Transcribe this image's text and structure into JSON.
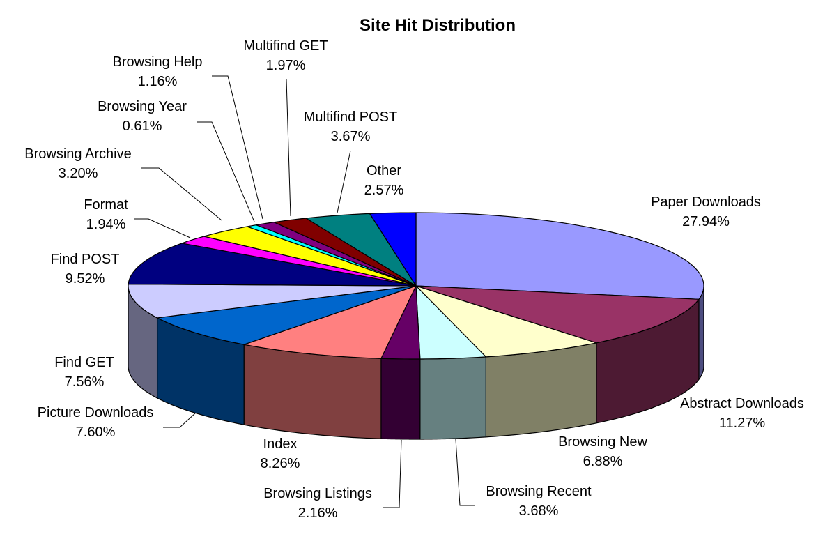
{
  "chart_data": {
    "type": "pie",
    "title": "Site Hit Distribution",
    "three_d": true,
    "slices": [
      {
        "label": "Paper Downloads",
        "value": 27.94,
        "pct_text": "27.94%",
        "color": "#9999FF"
      },
      {
        "label": "Abstract Downloads",
        "value": 11.27,
        "pct_text": "11.27%",
        "color": "#993366"
      },
      {
        "label": "Browsing New",
        "value": 6.88,
        "pct_text": "6.88%",
        "color": "#FFFFCC"
      },
      {
        "label": "Browsing Recent",
        "value": 3.68,
        "pct_text": "3.68%",
        "color": "#CCFFFF"
      },
      {
        "label": "Browsing Listings",
        "value": 2.16,
        "pct_text": "2.16%",
        "color": "#660066"
      },
      {
        "label": "Index",
        "value": 8.26,
        "pct_text": "8.26%",
        "color": "#FF8080"
      },
      {
        "label": "Picture Downloads",
        "value": 7.6,
        "pct_text": "7.60%",
        "color": "#0066CC"
      },
      {
        "label": "Find GET",
        "value": 7.56,
        "pct_text": "7.56%",
        "color": "#CCCCFF"
      },
      {
        "label": "Find POST",
        "value": 9.52,
        "pct_text": "9.52%",
        "color": "#000080"
      },
      {
        "label": "Format",
        "value": 1.94,
        "pct_text": "1.94%",
        "color": "#FF00FF"
      },
      {
        "label": "Browsing Archive",
        "value": 3.2,
        "pct_text": "3.20%",
        "color": "#FFFF00"
      },
      {
        "label": "Browsing Year",
        "value": 0.61,
        "pct_text": "0.61%",
        "color": "#00FFFF"
      },
      {
        "label": "Browsing Help",
        "value": 1.16,
        "pct_text": "1.16%",
        "color": "#800080"
      },
      {
        "label": "Multifind GET",
        "value": 1.97,
        "pct_text": "1.97%",
        "color": "#800000"
      },
      {
        "label": "Multifind POST",
        "value": 3.67,
        "pct_text": "3.67%",
        "color": "#008080"
      },
      {
        "label": "Other",
        "value": 2.57,
        "pct_text": "2.57%",
        "color": "#0000FF"
      }
    ]
  }
}
